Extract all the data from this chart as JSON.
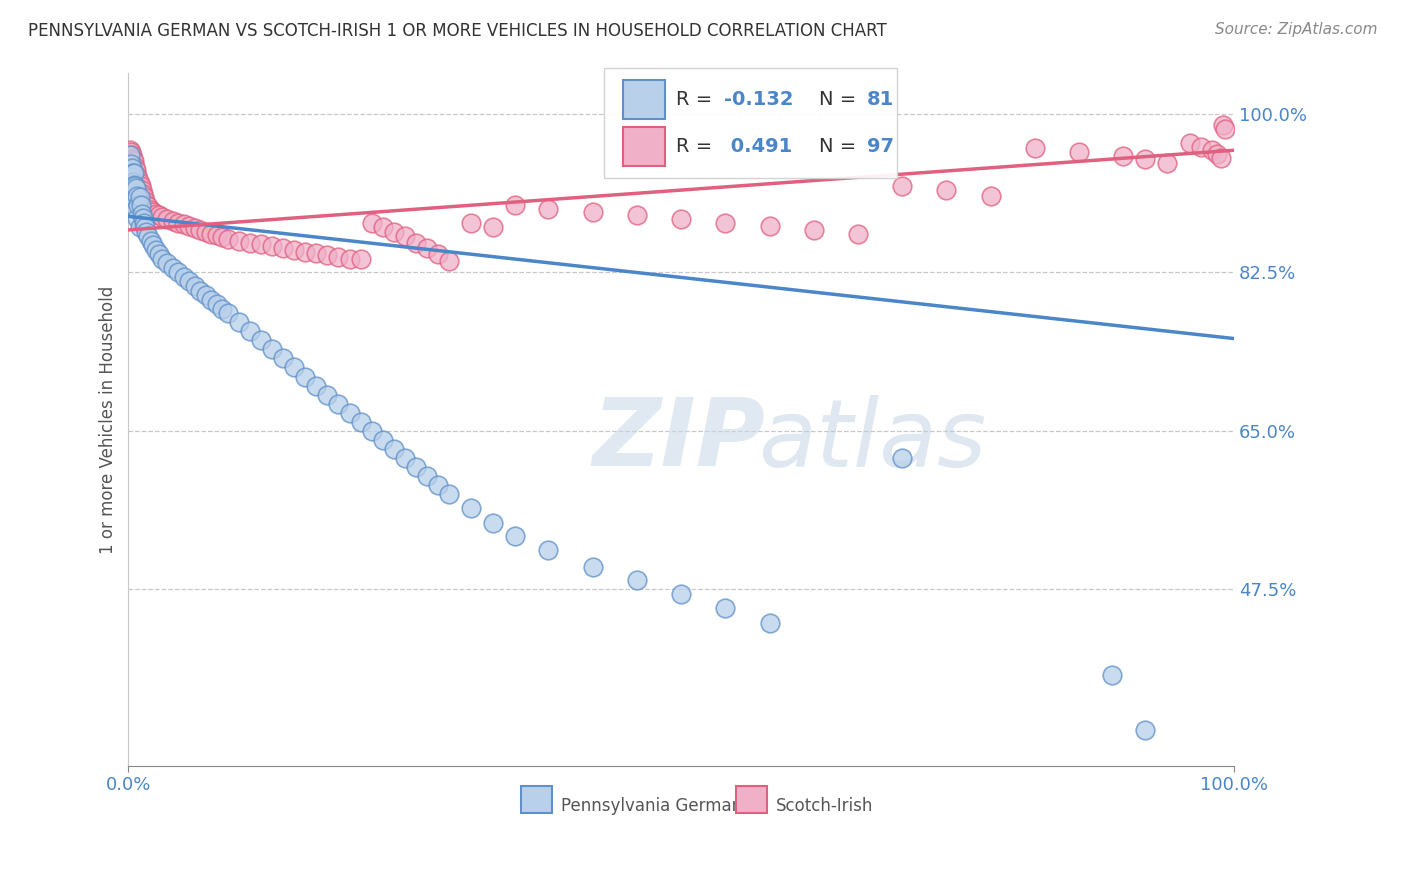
{
  "title": "PENNSYLVANIA GERMAN VS SCOTCH-IRISH 1 OR MORE VEHICLES IN HOUSEHOLD CORRELATION CHART",
  "source_text": "Source: ZipAtlas.com",
  "ylabel": "1 or more Vehicles in Household",
  "xlim": [
    0.0,
    1.0
  ],
  "ylim": [
    0.28,
    1.045
  ],
  "yticks": [
    0.475,
    0.65,
    0.825,
    1.0
  ],
  "ytick_labels": [
    "47.5%",
    "65.0%",
    "82.5%",
    "100.0%"
  ],
  "xtick_labels": [
    "0.0%",
    "100.0%"
  ],
  "blue_R": -0.132,
  "blue_N": 81,
  "pink_R": 0.491,
  "pink_N": 97,
  "blue_line_color": "#4a86c8",
  "pink_line_color": "#e06080",
  "blue_face_color": "#b8d0ea",
  "pink_face_color": "#f0b0c8",
  "blue_edge_color": "#6090c8",
  "pink_edge_color": "#e06080",
  "blue_line_y0": 0.887,
  "blue_line_y1": 0.752,
  "pink_line_y0": 0.872,
  "pink_line_y1": 0.96,
  "watermark_zip": "ZIP",
  "watermark_atlas": "atlas",
  "background_color": "#ffffff",
  "grid_color": "#c8c8c8",
  "title_color": "#333333",
  "axis_color": "#4a86c8",
  "bottom_legend": [
    {
      "label": "Pennsylvania Germans",
      "face": "#b8d0ea",
      "edge": "#6090c8"
    },
    {
      "label": "Scotch-Irish",
      "face": "#f0b0c8",
      "edge": "#e06080"
    }
  ],
  "blue_pts_x": [
    0.001,
    0.001,
    0.001,
    0.002,
    0.002,
    0.002,
    0.002,
    0.003,
    0.003,
    0.003,
    0.003,
    0.004,
    0.004,
    0.005,
    0.005,
    0.005,
    0.006,
    0.006,
    0.007,
    0.007,
    0.008,
    0.008,
    0.009,
    0.01,
    0.01,
    0.011,
    0.012,
    0.013,
    0.014,
    0.015,
    0.016,
    0.018,
    0.02,
    0.022,
    0.025,
    0.028,
    0.03,
    0.035,
    0.04,
    0.045,
    0.05,
    0.055,
    0.06,
    0.065,
    0.07,
    0.075,
    0.08,
    0.085,
    0.09,
    0.1,
    0.11,
    0.12,
    0.13,
    0.14,
    0.15,
    0.16,
    0.17,
    0.18,
    0.19,
    0.2,
    0.21,
    0.22,
    0.23,
    0.24,
    0.25,
    0.26,
    0.27,
    0.28,
    0.29,
    0.31,
    0.33,
    0.35,
    0.38,
    0.42,
    0.46,
    0.5,
    0.54,
    0.58,
    0.7,
    0.89,
    0.92
  ],
  "blue_pts_y": [
    0.955,
    0.94,
    0.93,
    0.945,
    0.935,
    0.925,
    0.915,
    0.94,
    0.93,
    0.92,
    0.91,
    0.935,
    0.925,
    0.935,
    0.922,
    0.91,
    0.92,
    0.905,
    0.918,
    0.895,
    0.91,
    0.885,
    0.9,
    0.908,
    0.875,
    0.9,
    0.89,
    0.885,
    0.88,
    0.875,
    0.87,
    0.865,
    0.86,
    0.855,
    0.85,
    0.845,
    0.84,
    0.835,
    0.83,
    0.825,
    0.82,
    0.815,
    0.81,
    0.805,
    0.8,
    0.795,
    0.79,
    0.785,
    0.78,
    0.77,
    0.76,
    0.75,
    0.74,
    0.73,
    0.72,
    0.71,
    0.7,
    0.69,
    0.68,
    0.67,
    0.66,
    0.65,
    0.64,
    0.63,
    0.62,
    0.61,
    0.6,
    0.59,
    0.58,
    0.565,
    0.548,
    0.534,
    0.518,
    0.5,
    0.485,
    0.47,
    0.454,
    0.438,
    0.62,
    0.38,
    0.32
  ],
  "pink_pts_x": [
    0.001,
    0.001,
    0.001,
    0.001,
    0.002,
    0.002,
    0.002,
    0.002,
    0.003,
    0.003,
    0.003,
    0.003,
    0.004,
    0.004,
    0.004,
    0.005,
    0.005,
    0.005,
    0.006,
    0.006,
    0.007,
    0.007,
    0.008,
    0.008,
    0.009,
    0.01,
    0.01,
    0.011,
    0.012,
    0.013,
    0.014,
    0.015,
    0.016,
    0.018,
    0.02,
    0.022,
    0.025,
    0.028,
    0.03,
    0.035,
    0.04,
    0.045,
    0.05,
    0.055,
    0.06,
    0.065,
    0.07,
    0.075,
    0.08,
    0.085,
    0.09,
    0.1,
    0.11,
    0.12,
    0.13,
    0.14,
    0.15,
    0.16,
    0.17,
    0.18,
    0.19,
    0.2,
    0.21,
    0.22,
    0.23,
    0.24,
    0.25,
    0.26,
    0.27,
    0.28,
    0.29,
    0.31,
    0.33,
    0.35,
    0.38,
    0.42,
    0.46,
    0.5,
    0.54,
    0.58,
    0.62,
    0.66,
    0.7,
    0.74,
    0.78,
    0.82,
    0.86,
    0.9,
    0.92,
    0.94,
    0.96,
    0.97,
    0.98,
    0.985,
    0.988,
    0.99,
    0.992
  ],
  "pink_pts_y": [
    0.96,
    0.952,
    0.945,
    0.935,
    0.958,
    0.95,
    0.942,
    0.932,
    0.955,
    0.947,
    0.938,
    0.928,
    0.95,
    0.942,
    0.932,
    0.948,
    0.938,
    0.928,
    0.942,
    0.93,
    0.938,
    0.925,
    0.932,
    0.92,
    0.928,
    0.924,
    0.912,
    0.92,
    0.916,
    0.912,
    0.908,
    0.904,
    0.9,
    0.898,
    0.894,
    0.892,
    0.89,
    0.888,
    0.886,
    0.884,
    0.882,
    0.88,
    0.878,
    0.876,
    0.874,
    0.872,
    0.87,
    0.868,
    0.866,
    0.864,
    0.862,
    0.86,
    0.858,
    0.856,
    0.854,
    0.852,
    0.85,
    0.848,
    0.846,
    0.844,
    0.842,
    0.84,
    0.84,
    0.88,
    0.875,
    0.87,
    0.865,
    0.858,
    0.852,
    0.845,
    0.838,
    0.88,
    0.875,
    0.9,
    0.895,
    0.892,
    0.888,
    0.884,
    0.88,
    0.876,
    0.872,
    0.868,
    0.92,
    0.916,
    0.91,
    0.962,
    0.958,
    0.954,
    0.95,
    0.946,
    0.968,
    0.964,
    0.96,
    0.956,
    0.952,
    0.988,
    0.984
  ]
}
